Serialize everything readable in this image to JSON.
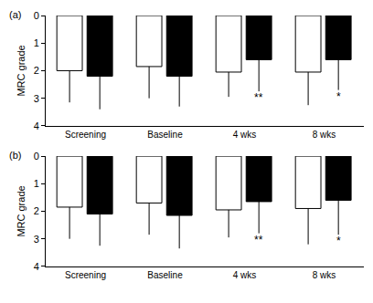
{
  "chart_data": [
    {
      "type": "bar",
      "title": "(a)",
      "y_label": "MRC grade",
      "categories": [
        "Screening",
        "Baseline",
        "4 wks",
        "8 wks"
      ],
      "series": [
        {
          "color": "#ffffff",
          "values": [
            2.0,
            1.85,
            2.05,
            2.05
          ],
          "errors": [
            1.15,
            1.15,
            0.9,
            1.2
          ]
        },
        {
          "color": "#000000",
          "values": [
            2.2,
            2.2,
            1.6,
            1.6
          ],
          "errors": [
            1.2,
            1.1,
            1.15,
            1.1
          ]
        }
      ],
      "annotations": [
        {
          "text": "**",
          "category": "4 wks",
          "series": 1
        },
        {
          "text": "*",
          "category": "8 wks",
          "series": 1
        }
      ],
      "ylim": [
        4,
        0
      ],
      "yticks": [
        0,
        1,
        2,
        3,
        4
      ],
      "grid": false
    },
    {
      "type": "bar",
      "title": "(b)",
      "y_label": "MRC grade",
      "categories": [
        "Screening",
        "Baseline",
        "4 wks",
        "8 wks"
      ],
      "series": [
        {
          "color": "#ffffff",
          "values": [
            1.85,
            1.7,
            1.95,
            1.9
          ],
          "errors": [
            1.15,
            1.15,
            1.0,
            1.3
          ]
        },
        {
          "color": "#000000",
          "values": [
            2.1,
            2.15,
            1.65,
            1.6
          ],
          "errors": [
            1.15,
            1.2,
            1.15,
            1.25
          ]
        }
      ],
      "annotations": [
        {
          "text": "**",
          "category": "4 wks",
          "series": 1
        },
        {
          "text": "*",
          "category": "8 wks",
          "series": 1
        }
      ],
      "ylim": [
        4,
        0
      ],
      "yticks": [
        0,
        1,
        2,
        3,
        4
      ],
      "grid": false
    }
  ]
}
